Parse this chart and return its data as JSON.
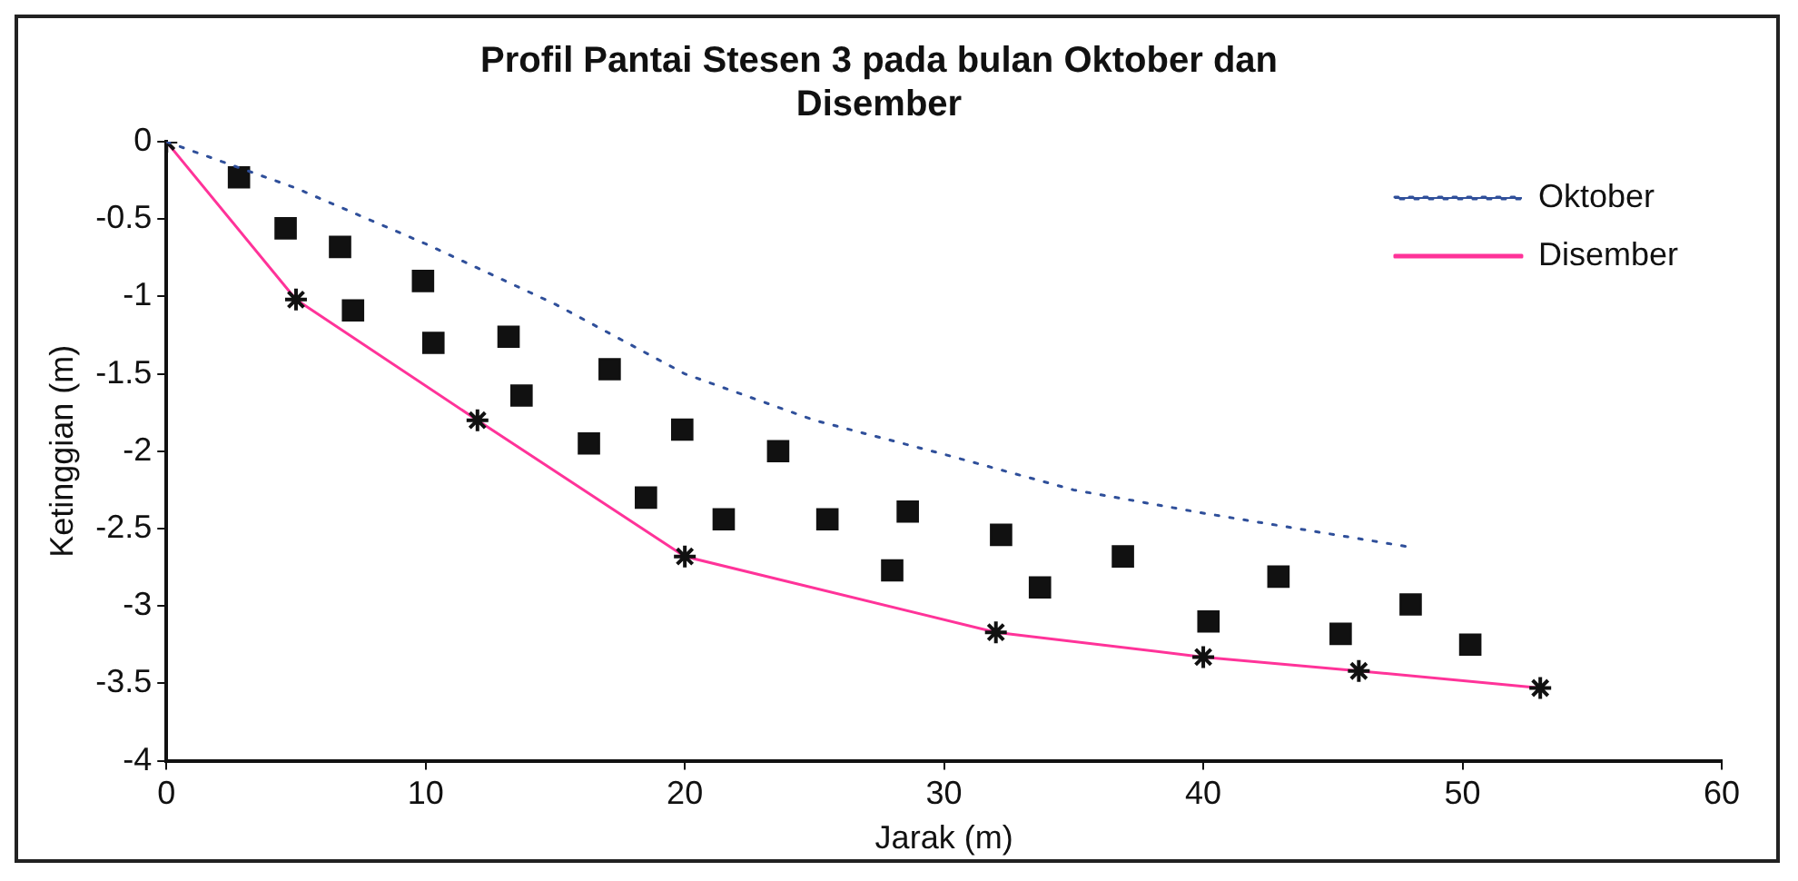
{
  "chart_data": {
    "type": "line",
    "title": "Profil Pantai Stesen 3 pada bulan Oktober dan Disember",
    "xlabel": "Jarak (m)",
    "ylabel": "Ketinggian (m)",
    "xlim": [
      0,
      60
    ],
    "xticks": [
      0,
      10,
      20,
      30,
      40,
      50,
      60
    ],
    "ylim": [
      -4,
      0
    ],
    "yticks": [
      0,
      -0.5,
      -1,
      -1.5,
      -2,
      -2.5,
      -3,
      -3.5,
      -4
    ],
    "grid": false,
    "legend": "top right",
    "series": [
      {
        "name": "Oktober",
        "color": "#2f4f9a",
        "line_style": "dotted",
        "marker": "none",
        "x": [
          0,
          5,
          10,
          15,
          20,
          25,
          30,
          35,
          40,
          48
        ],
        "values": [
          0,
          -0.3,
          -0.66,
          -1.05,
          -1.5,
          -1.8,
          -2.02,
          -2.25,
          -2.4,
          -2.62
        ]
      },
      {
        "name": "Disember",
        "color": "#ff3399",
        "line_style": "solid",
        "marker": "cross",
        "x": [
          0,
          5,
          12,
          20,
          32,
          40,
          46,
          53
        ],
        "values": [
          0,
          -1.02,
          -1.8,
          -2.68,
          -3.17,
          -3.33,
          -3.42,
          -3.53
        ]
      },
      {
        "type": "scatter",
        "color": "#111111",
        "marker": "square",
        "x": [
          2.8,
          4.6,
          6.7,
          7.2,
          9.9,
          10.3,
          13.2,
          13.7,
          16.3,
          17.1,
          18.5,
          19.9,
          21.5,
          23.6,
          25.5,
          28.0,
          28.6,
          32.2,
          33.7,
          36.9,
          40.2,
          42.9,
          45.3,
          48.0,
          50.3
        ],
        "values": [
          -0.23,
          -0.56,
          -0.68,
          -1.09,
          -0.9,
          -1.3,
          -1.26,
          -1.64,
          -1.95,
          -1.47,
          -2.3,
          -1.86,
          -2.44,
          -2.0,
          -2.44,
          -2.77,
          -2.39,
          -2.54,
          -2.88,
          -2.68,
          -3.1,
          -2.81,
          -3.18,
          -2.99,
          -3.25
        ]
      }
    ]
  }
}
